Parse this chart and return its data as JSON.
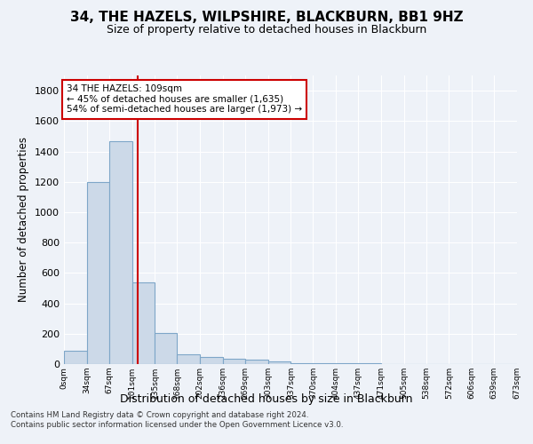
{
  "title1": "34, THE HAZELS, WILPSHIRE, BLACKBURN, BB1 9HZ",
  "title2": "Size of property relative to detached houses in Blackburn",
  "xlabel": "Distribution of detached houses by size in Blackburn",
  "ylabel": "Number of detached properties",
  "bar_values": [
    90,
    1200,
    1470,
    540,
    205,
    65,
    45,
    35,
    28,
    15,
    8,
    5,
    4,
    3,
    2,
    1,
    1,
    1,
    1,
    0
  ],
  "bin_edges": [
    0,
    34,
    67,
    101,
    135,
    168,
    202,
    236,
    269,
    303,
    337,
    370,
    404,
    437,
    471,
    505,
    538,
    572,
    606,
    639,
    673
  ],
  "x_tick_labels": [
    "0sqm",
    "34sqm",
    "67sqm",
    "101sqm",
    "135sqm",
    "168sqm",
    "202sqm",
    "236sqm",
    "269sqm",
    "303sqm",
    "337sqm",
    "370sqm",
    "404sqm",
    "437sqm",
    "471sqm",
    "505sqm",
    "538sqm",
    "572sqm",
    "606sqm",
    "639sqm",
    "673sqm"
  ],
  "bar_color": "#ccd9e8",
  "bar_edge_color": "#7ea6c8",
  "vline_x": 109,
  "vline_color": "#cc0000",
  "ylim": [
    0,
    1900
  ],
  "yticks": [
    0,
    200,
    400,
    600,
    800,
    1000,
    1200,
    1400,
    1600,
    1800
  ],
  "annotation_title": "34 THE HAZELS: 109sqm",
  "annotation_line1": "← 45% of detached houses are smaller (1,635)",
  "annotation_line2": "54% of semi-detached houses are larger (1,973) →",
  "annotation_box_color": "white",
  "annotation_box_edge": "#cc0000",
  "footer1": "Contains HM Land Registry data © Crown copyright and database right 2024.",
  "footer2": "Contains public sector information licensed under the Open Government Licence v3.0.",
  "bg_color": "#eef2f8",
  "grid_color": "#ffffff"
}
